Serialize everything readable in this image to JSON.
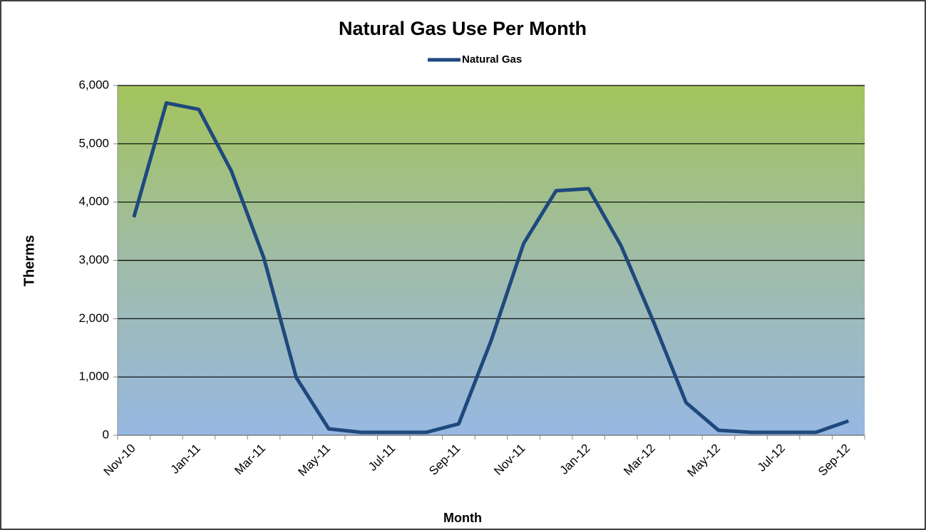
{
  "chart_data": {
    "type": "line",
    "title": "Natural Gas Use Per Month",
    "x_label": "Month",
    "y_label": "Therms",
    "categories": [
      "Nov-10",
      null,
      "Jan-11",
      null,
      "Mar-11",
      null,
      "May-11",
      null,
      "Jul-11",
      null,
      "Sep-11",
      null,
      "Nov-11",
      null,
      "Jan-12",
      null,
      "Mar-12",
      null,
      "May-12",
      null,
      "Jul-12",
      null,
      "Sep-12"
    ],
    "series": [
      {
        "name": "Natural Gas",
        "color": "#1f497d",
        "values": [
          3740,
          5700,
          5590,
          4535,
          3045,
          990,
          110,
          50,
          50,
          50,
          195,
          1625,
          3290,
          4195,
          4230,
          3250,
          1945,
          560,
          85,
          50,
          50,
          50,
          245
        ]
      }
    ],
    "ylim": [
      0,
      6000
    ],
    "yticks": [
      0,
      {
        "value": 1000,
        "label": "1,000"
      },
      {
        "value": 2000,
        "label": "2,000"
      },
      {
        "value": 3000,
        "label": "3,000"
      },
      {
        "value": 4000,
        "label": "4,000"
      },
      {
        "value": 5000,
        "label": "5,000"
      },
      {
        "value": 6000,
        "label": "6,000"
      }
    ],
    "grid": true,
    "legend": "top"
  }
}
